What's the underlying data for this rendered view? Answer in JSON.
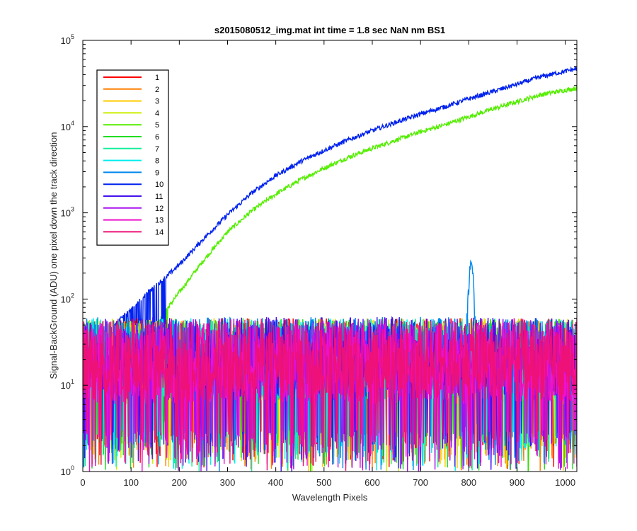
{
  "chart_data": {
    "type": "line",
    "title": "s2015080512_img.mat int time = 1.8 sec  NaN nm BS1",
    "xlabel": "Wavelength Pixels",
    "ylabel": "Signal-BackGround (ADU) one pixel down the track direction",
    "xlim": [
      0,
      1024
    ],
    "ylim": [
      1,
      100000
    ],
    "y_scale": "log",
    "grid": false,
    "legend_position": "top-left",
    "x_ticks": [
      0,
      100,
      200,
      300,
      400,
      500,
      600,
      700,
      800,
      900,
      1000
    ],
    "y_ticks": [
      {
        "value": 1,
        "base": "10",
        "exp": "0"
      },
      {
        "value": 10,
        "base": "10",
        "exp": "1"
      },
      {
        "value": 100,
        "base": "10",
        "exp": "2"
      },
      {
        "value": 1000,
        "base": "10",
        "exp": "3"
      },
      {
        "value": 10000,
        "base": "10",
        "exp": "4"
      },
      {
        "value": 100000,
        "base": "10",
        "exp": "5"
      }
    ],
    "x": [
      0,
      100,
      150,
      200,
      250,
      300,
      350,
      400,
      450,
      500,
      550,
      600,
      650,
      700,
      750,
      800,
      850,
      900,
      950,
      1024
    ],
    "series": [
      {
        "name": "1",
        "color": "#ff0000",
        "kind": "noise",
        "level": 20
      },
      {
        "name": "2",
        "color": "#ff7f00",
        "kind": "noise",
        "level": 18
      },
      {
        "name": "3",
        "color": "#ffcc00",
        "kind": "noise",
        "level": 20
      },
      {
        "name": "4",
        "color": "#ccee00",
        "kind": "noise",
        "level": 20
      },
      {
        "name": "5",
        "color": "#55ee00",
        "kind": "signal",
        "values": [
          18,
          20,
          50,
          120,
          280,
          600,
          1050,
          1650,
          2400,
          3300,
          4400,
          5600,
          7000,
          8700,
          10500,
          13000,
          16000,
          19500,
          23500,
          28000
        ]
      },
      {
        "name": "6",
        "color": "#22dd22",
        "kind": "noise",
        "level": 20
      },
      {
        "name": "7",
        "color": "#11ee99",
        "kind": "noise",
        "level": 20
      },
      {
        "name": "8",
        "color": "#00eeee",
        "kind": "noise",
        "level": 20
      },
      {
        "name": "9",
        "color": "#0088ee",
        "kind": "noise",
        "level": 25,
        "peak": {
          "x": 805,
          "value": 250
        }
      },
      {
        "name": "10",
        "color": "#0022ee",
        "kind": "signal",
        "values": [
          20,
          80,
          140,
          250,
          500,
          950,
          1700,
          2700,
          3900,
          5300,
          7000,
          9000,
          11300,
          14000,
          17000,
          21000,
          25500,
          31000,
          38000,
          47000
        ]
      },
      {
        "name": "11",
        "color": "#4411ee",
        "kind": "noise",
        "level": 22
      },
      {
        "name": "12",
        "color": "#aa11ee",
        "kind": "noise",
        "level": 20
      },
      {
        "name": "13",
        "color": "#ee11cc",
        "kind": "noise",
        "level": 18
      },
      {
        "name": "14",
        "color": "#ee1177",
        "kind": "noise",
        "level": 20
      }
    ]
  }
}
